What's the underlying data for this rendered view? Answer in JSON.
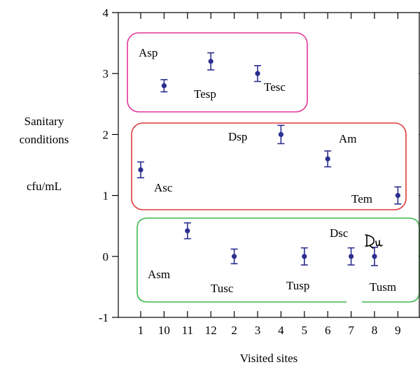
{
  "chart_data": {
    "type": "scatter",
    "title": "",
    "xlabel": "Visited sites",
    "ylabel_lines": [
      "Sanitary",
      "conditions",
      "cfu/mL"
    ],
    "categories": [
      "1",
      "10",
      "11",
      "12",
      "2",
      "3",
      "4",
      "5",
      "6",
      "7",
      "8",
      "9"
    ],
    "ylim": [
      -1,
      4
    ],
    "yticks": [
      "-1",
      "0",
      "1",
      "2",
      "3",
      "4"
    ],
    "series": [
      {
        "points": [
          {
            "x": "1",
            "y": 1.42,
            "err": 0.13,
            "label": "Asc"
          },
          {
            "x": "10",
            "y": 2.8,
            "err": 0.1,
            "label": ""
          },
          {
            "x": "11",
            "y": 0.42,
            "err": 0.13,
            "label": "Asm"
          },
          {
            "x": "12",
            "y": 3.2,
            "err": 0.14,
            "label": "Tesp"
          },
          {
            "x": "2",
            "y": 0.0,
            "err": 0.12,
            "label": "Tusc"
          },
          {
            "x": "3",
            "y": 3.0,
            "err": 0.13,
            "label": "Tesc"
          },
          {
            "x": "4",
            "y": 2.0,
            "err": 0.15,
            "label": "Dsp"
          },
          {
            "x": "5",
            "y": 0.0,
            "err": 0.14,
            "label": "Tusp"
          },
          {
            "x": "6",
            "y": 1.6,
            "err": 0.13,
            "label": "Am"
          },
          {
            "x": "7",
            "y": 0.0,
            "err": 0.14,
            "label": "Dsc"
          },
          {
            "x": "8",
            "y": 0.0,
            "err": 0.15,
            "label": ""
          },
          {
            "x": "9",
            "y": 1.0,
            "err": 0.14,
            "label": "Tem"
          }
        ]
      }
    ],
    "extra_labels": [
      "Asp",
      "Tusm"
    ],
    "groups": [
      {
        "name": "pink-group",
        "color": "#e0359a"
      },
      {
        "name": "red-group",
        "color": "#e0393a"
      },
      {
        "name": "green-group",
        "color": "#3cb84a"
      }
    ],
    "marker_color": "#2b2f8f",
    "grid": false
  }
}
